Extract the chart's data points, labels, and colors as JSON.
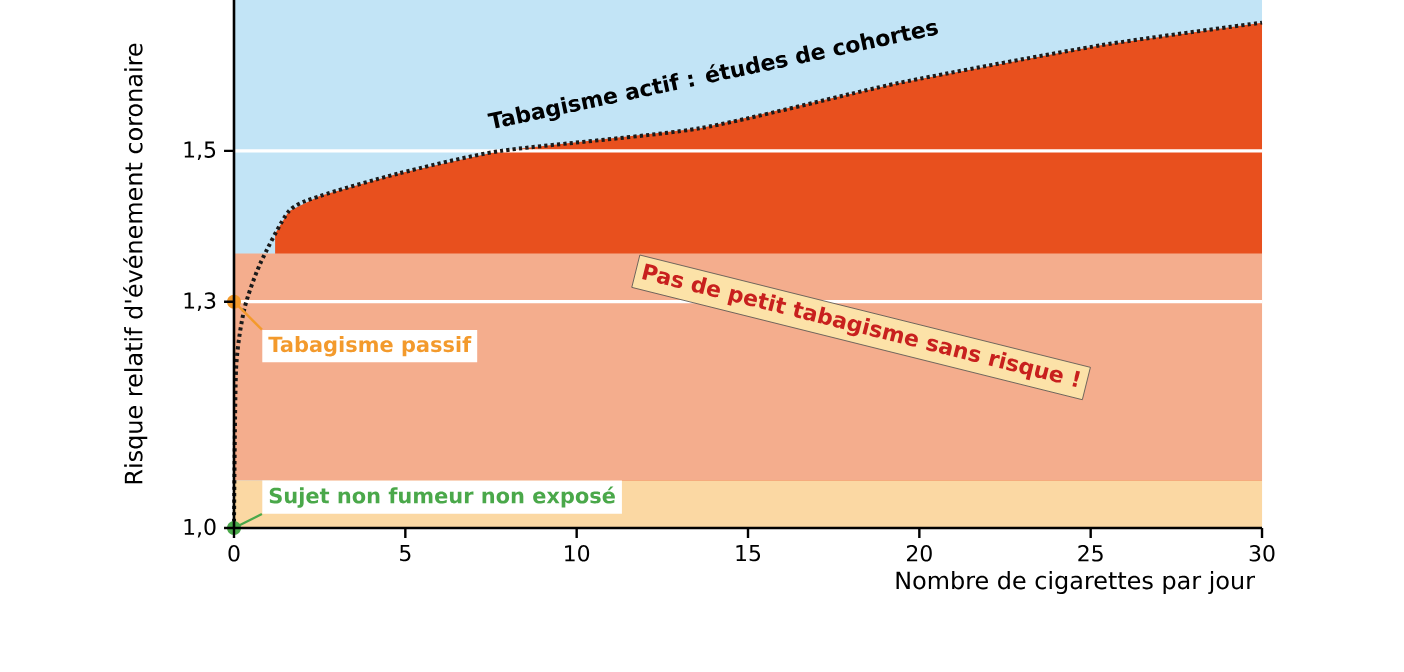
{
  "chart_data": {
    "type": "area",
    "xlabel": "Nombre de cigarettes par jour",
    "ylabel": "Risque relatif d'événement coronaire",
    "x": [
      0,
      0.06,
      0.3,
      0.76,
      1.6,
      2.5,
      4.8,
      7.8,
      13.6,
      19.4,
      25.3,
      30
    ],
    "series": [
      {
        "name": "Tabagisme actif : études de cohortes",
        "type": "line",
        "color": "#1a1a1a",
        "line_style": "dotted",
        "values": [
          1.0,
          1.21,
          1.29,
          1.35,
          1.42,
          1.44,
          1.47,
          1.5,
          1.53,
          1.59,
          1.64,
          1.67
        ]
      },
      {
        "color": "#e8501e",
        "x": [
          1.2,
          1.6,
          2.5,
          4.8,
          7.8,
          13.6,
          19.4,
          25.3,
          30
        ],
        "values": [
          1.39,
          1.42,
          1.44,
          1.47,
          1.5,
          1.53,
          1.59,
          1.64,
          1.67
        ]
      }
    ],
    "xlim": [
      0,
      30
    ],
    "ylim": [
      1.0,
      1.7
    ],
    "xticks": [
      0,
      5,
      10,
      15,
      20,
      25,
      30
    ],
    "yticks": [
      {
        "value": 1.0,
        "label": "1,0"
      },
      {
        "value": 1.3,
        "label": "1,3"
      },
      {
        "value": 1.5,
        "label": "1,5"
      }
    ],
    "bands": [
      {
        "axis": "y",
        "from": 1.0,
        "to": 1.7,
        "color": "#c2e4f6"
      },
      {
        "axis": "y",
        "from": 1.063,
        "to": 1.364,
        "color": "#f4ad8d"
      },
      {
        "axis": "y",
        "from": 1.0,
        "to": 1.063,
        "color": "#fbd8a3"
      }
    ],
    "ref_lines": [
      {
        "axis": "y",
        "value": 1.5,
        "color": "#ffffff"
      },
      {
        "axis": "y",
        "value": 1.3,
        "color": "#ffffff"
      }
    ],
    "annotations": [
      {
        "text": "Tabagisme passif",
        "x": 0,
        "y": 1.3
      },
      {
        "text": "Sujet non fumeur non exposé",
        "x": 0,
        "y": 1.0
      },
      "Pas de petit tabagisme sans risque !"
    ]
  }
}
